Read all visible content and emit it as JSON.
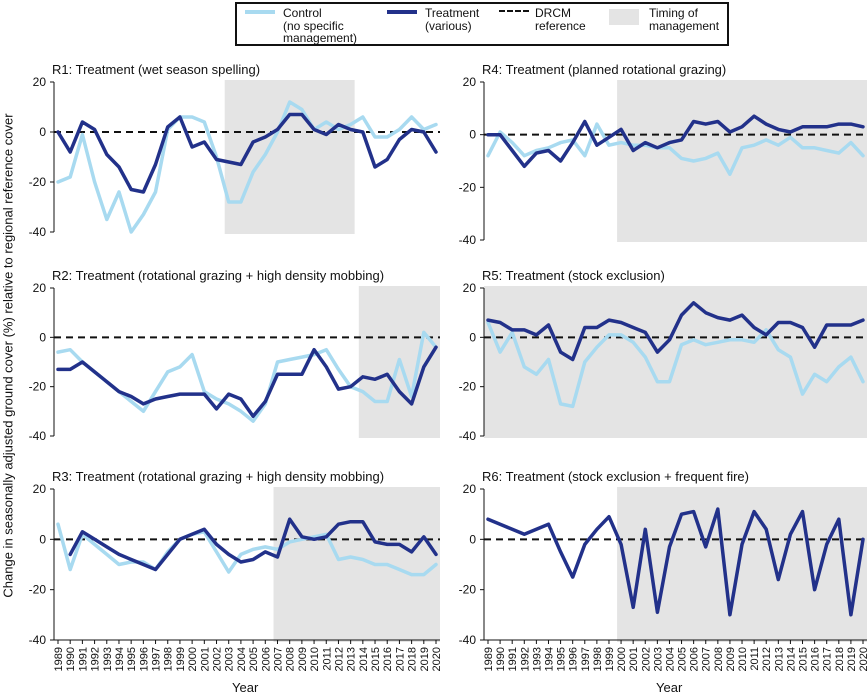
{
  "legend": {
    "control_label": "Control",
    "control_sub1": "(no specific",
    "control_sub2": "management)",
    "treatment_label": "Treatment",
    "treatment_sub": "(various)",
    "reference_label": "DRCM",
    "reference_sub": "reference",
    "timing_label": "Timing of",
    "timing_sub": "management"
  },
  "y_axis_title": "Change in seasonally adjusted ground cover (%) relative to regional reference cover",
  "x_axis_title": "Year",
  "colors": {
    "control": "#a8daf0",
    "treatment": "#22318a",
    "reference": "#111111",
    "management_shade": "#e4e4e4"
  },
  "chart_data": [
    {
      "type": "line",
      "title": "R1: Treatment (wet season spelling)",
      "x": [
        1989,
        1990,
        1991,
        1992,
        1993,
        1994,
        1995,
        1996,
        1997,
        1998,
        1999,
        2000,
        2001,
        2002,
        2003,
        2004,
        2005,
        2006,
        2007,
        2008,
        2009,
        2010,
        2011,
        2012,
        2013,
        2014,
        2015,
        2016,
        2017,
        2018,
        2019,
        2020
      ],
      "ylim": [
        -40,
        20
      ],
      "yticks": [
        -40,
        -20,
        0,
        20
      ],
      "management_period": [
        2003,
        2013
      ],
      "series": [
        {
          "name": "Control",
          "values": [
            -20,
            -18,
            -1,
            -20,
            -35,
            -24,
            -40,
            -33,
            -24,
            1,
            6,
            6,
            4,
            -10,
            -28,
            -28,
            -16,
            -9,
            0,
            12,
            9,
            1,
            4,
            1,
            3,
            6,
            -2,
            -2,
            1,
            6,
            1,
            3
          ]
        },
        {
          "name": "Treatment",
          "values": [
            0,
            -8,
            4,
            1,
            -9,
            -14,
            -23,
            -24,
            -13,
            2,
            6,
            -6,
            -4,
            -11,
            -12,
            -13,
            -4,
            -2,
            1,
            7,
            7,
            1,
            -1,
            3,
            1,
            0,
            -14,
            -11,
            -3,
            1,
            0,
            -8
          ]
        }
      ]
    },
    {
      "type": "line",
      "title": "R2: Treatment (rotational grazing + high density mobbing)",
      "x": [
        1989,
        1990,
        1991,
        1992,
        1993,
        1994,
        1995,
        1996,
        1997,
        1998,
        1999,
        2000,
        2001,
        2002,
        2003,
        2004,
        2005,
        2006,
        2007,
        2008,
        2009,
        2010,
        2011,
        2012,
        2013,
        2014,
        2015,
        2016,
        2017,
        2018,
        2019,
        2020
      ],
      "ylim": [
        -40,
        20
      ],
      "yticks": [
        -40,
        -20,
        0,
        20
      ],
      "management_period": [
        2014,
        2020
      ],
      "series": [
        {
          "name": "Control",
          "values": [
            -6,
            -5,
            -10,
            -14,
            -18,
            -22,
            -26,
            -30,
            -22,
            -14,
            -12,
            -7,
            -22,
            -25,
            -27,
            -30,
            -34,
            -27,
            -10,
            -9,
            -8,
            -7,
            -5,
            -13,
            -20,
            -22,
            -26,
            -26,
            -9,
            -24,
            2,
            -4
          ]
        },
        {
          "name": "Treatment",
          "values": [
            -13,
            -13,
            -10,
            -14,
            -18,
            -22,
            -24,
            -27,
            -25,
            -24,
            -23,
            -23,
            -23,
            -29,
            -23,
            -25,
            -32,
            -26,
            -15,
            -15,
            -15,
            -5,
            -12,
            -21,
            -20,
            -16,
            -17,
            -15,
            -22,
            -27,
            -12,
            -4
          ]
        }
      ]
    },
    {
      "type": "line",
      "title": "R3: Treatment (rotational grazing + high density mobbing)",
      "x": [
        1989,
        1990,
        1991,
        1992,
        1993,
        1994,
        1995,
        1996,
        1997,
        1998,
        1999,
        2000,
        2001,
        2002,
        2003,
        2004,
        2005,
        2006,
        2007,
        2008,
        2009,
        2010,
        2011,
        2012,
        2013,
        2014,
        2015,
        2016,
        2017,
        2018,
        2019,
        2020
      ],
      "ylim": [
        -40,
        20
      ],
      "yticks": [
        -40,
        -20,
        0,
        20
      ],
      "management_period": [
        2007,
        2020
      ],
      "series": [
        {
          "name": "Control",
          "values": [
            6,
            -12,
            2,
            -2,
            -6,
            -10,
            -9,
            -9,
            -12,
            -5,
            0,
            2,
            3,
            -5,
            -13,
            -6,
            -4,
            -3,
            -4,
            -1,
            0,
            1,
            2,
            -8,
            -7,
            -8,
            -10,
            -10,
            -12,
            -14,
            -14,
            -10
          ]
        },
        {
          "name": "Treatment",
          "values": null,
          "values_start_year": 1990,
          "points": [
            -6,
            3,
            0,
            -3,
            -6,
            -8,
            -10,
            -12,
            -6,
            0,
            2,
            4,
            -2,
            -6,
            -9,
            -8,
            -5,
            -7,
            8,
            1,
            0,
            1,
            6,
            7,
            7,
            -1,
            -2,
            -2,
            -5,
            1,
            -6
          ]
        }
      ]
    },
    {
      "type": "line",
      "title": "R4: Treatment (planned rotational grazing)",
      "x": [
        1989,
        1990,
        1991,
        1992,
        1993,
        1994,
        1995,
        1996,
        1997,
        1998,
        1999,
        2000,
        2001,
        2002,
        2003,
        2004,
        2005,
        2006,
        2007,
        2008,
        2009,
        2010,
        2011,
        2012,
        2013,
        2014,
        2015,
        2016,
        2017,
        2018,
        2019,
        2020
      ],
      "ylim": [
        -40,
        20
      ],
      "yticks": [
        -40,
        -20,
        0,
        20
      ],
      "management_period": [
        2000,
        2020
      ],
      "series": [
        {
          "name": "Control",
          "values": [
            -8,
            1,
            -3,
            -8,
            -6,
            -5,
            -3,
            -2,
            -8,
            4,
            -4,
            -3,
            -4,
            -4,
            -5,
            -5,
            -9,
            -10,
            -9,
            -7,
            -15,
            -5,
            -4,
            -2,
            -4,
            -1,
            -5,
            -5,
            -6,
            -7,
            -3,
            -8
          ]
        },
        {
          "name": "Treatment",
          "values": [
            0,
            0,
            -6,
            -12,
            -7,
            -6,
            -10,
            -3,
            5,
            -4,
            -1,
            2,
            -6,
            -3,
            -5,
            -3,
            -2,
            5,
            4,
            5,
            1,
            3,
            7,
            4,
            2,
            1,
            3,
            3,
            3,
            4,
            4,
            3
          ]
        }
      ]
    },
    {
      "type": "line",
      "title": "R5: Treatment (stock exclusion)",
      "x": [
        1989,
        1990,
        1991,
        1992,
        1993,
        1994,
        1995,
        1996,
        1997,
        1998,
        1999,
        2000,
        2001,
        2002,
        2003,
        2004,
        2005,
        2006,
        2007,
        2008,
        2009,
        2010,
        2011,
        2012,
        2013,
        2014,
        2015,
        2016,
        2017,
        2018,
        2019,
        2020
      ],
      "ylim": [
        -40,
        20
      ],
      "yticks": [
        -40,
        -20,
        0,
        20
      ],
      "management_period": [
        1989,
        2020
      ],
      "series": [
        {
          "name": "Control",
          "values": [
            6,
            -6,
            2,
            -12,
            -15,
            -9,
            -27,
            -28,
            -10,
            -4,
            1,
            1,
            -2,
            -8,
            -18,
            -18,
            -3,
            -1,
            -3,
            -2,
            -1,
            -1,
            -2,
            3,
            -5,
            -8,
            -23,
            -15,
            -18,
            -12,
            -8,
            -18
          ]
        },
        {
          "name": "Treatment",
          "values": [
            7,
            6,
            3,
            3,
            1,
            5,
            -6,
            -9,
            4,
            4,
            7,
            6,
            4,
            2,
            -6,
            -1,
            9,
            14,
            10,
            8,
            7,
            9,
            4,
            1,
            6,
            6,
            4,
            -4,
            5,
            5,
            5,
            7
          ]
        }
      ]
    },
    {
      "type": "line",
      "title": "R6: Treatment (stock exclusion + frequent fire)",
      "x": [
        1989,
        1990,
        1991,
        1992,
        1993,
        1994,
        1995,
        1996,
        1997,
        1998,
        1999,
        2000,
        2001,
        2002,
        2003,
        2004,
        2005,
        2006,
        2007,
        2008,
        2009,
        2010,
        2011,
        2012,
        2013,
        2014,
        2015,
        2016,
        2017,
        2018,
        2019,
        2020
      ],
      "ylim": [
        -40,
        20
      ],
      "yticks": [
        -40,
        -20,
        0,
        20
      ],
      "management_period": [
        2000,
        2020
      ],
      "series": [
        {
          "name": "Treatment",
          "values": [
            8,
            6,
            4,
            2,
            4,
            6,
            -5,
            -15,
            -2,
            4,
            9,
            -2,
            -27,
            4,
            -29,
            -3,
            10,
            11,
            -3,
            12,
            -30,
            -2,
            11,
            4,
            -16,
            2,
            11,
            -20,
            -2,
            8,
            -30,
            0
          ]
        }
      ]
    }
  ]
}
